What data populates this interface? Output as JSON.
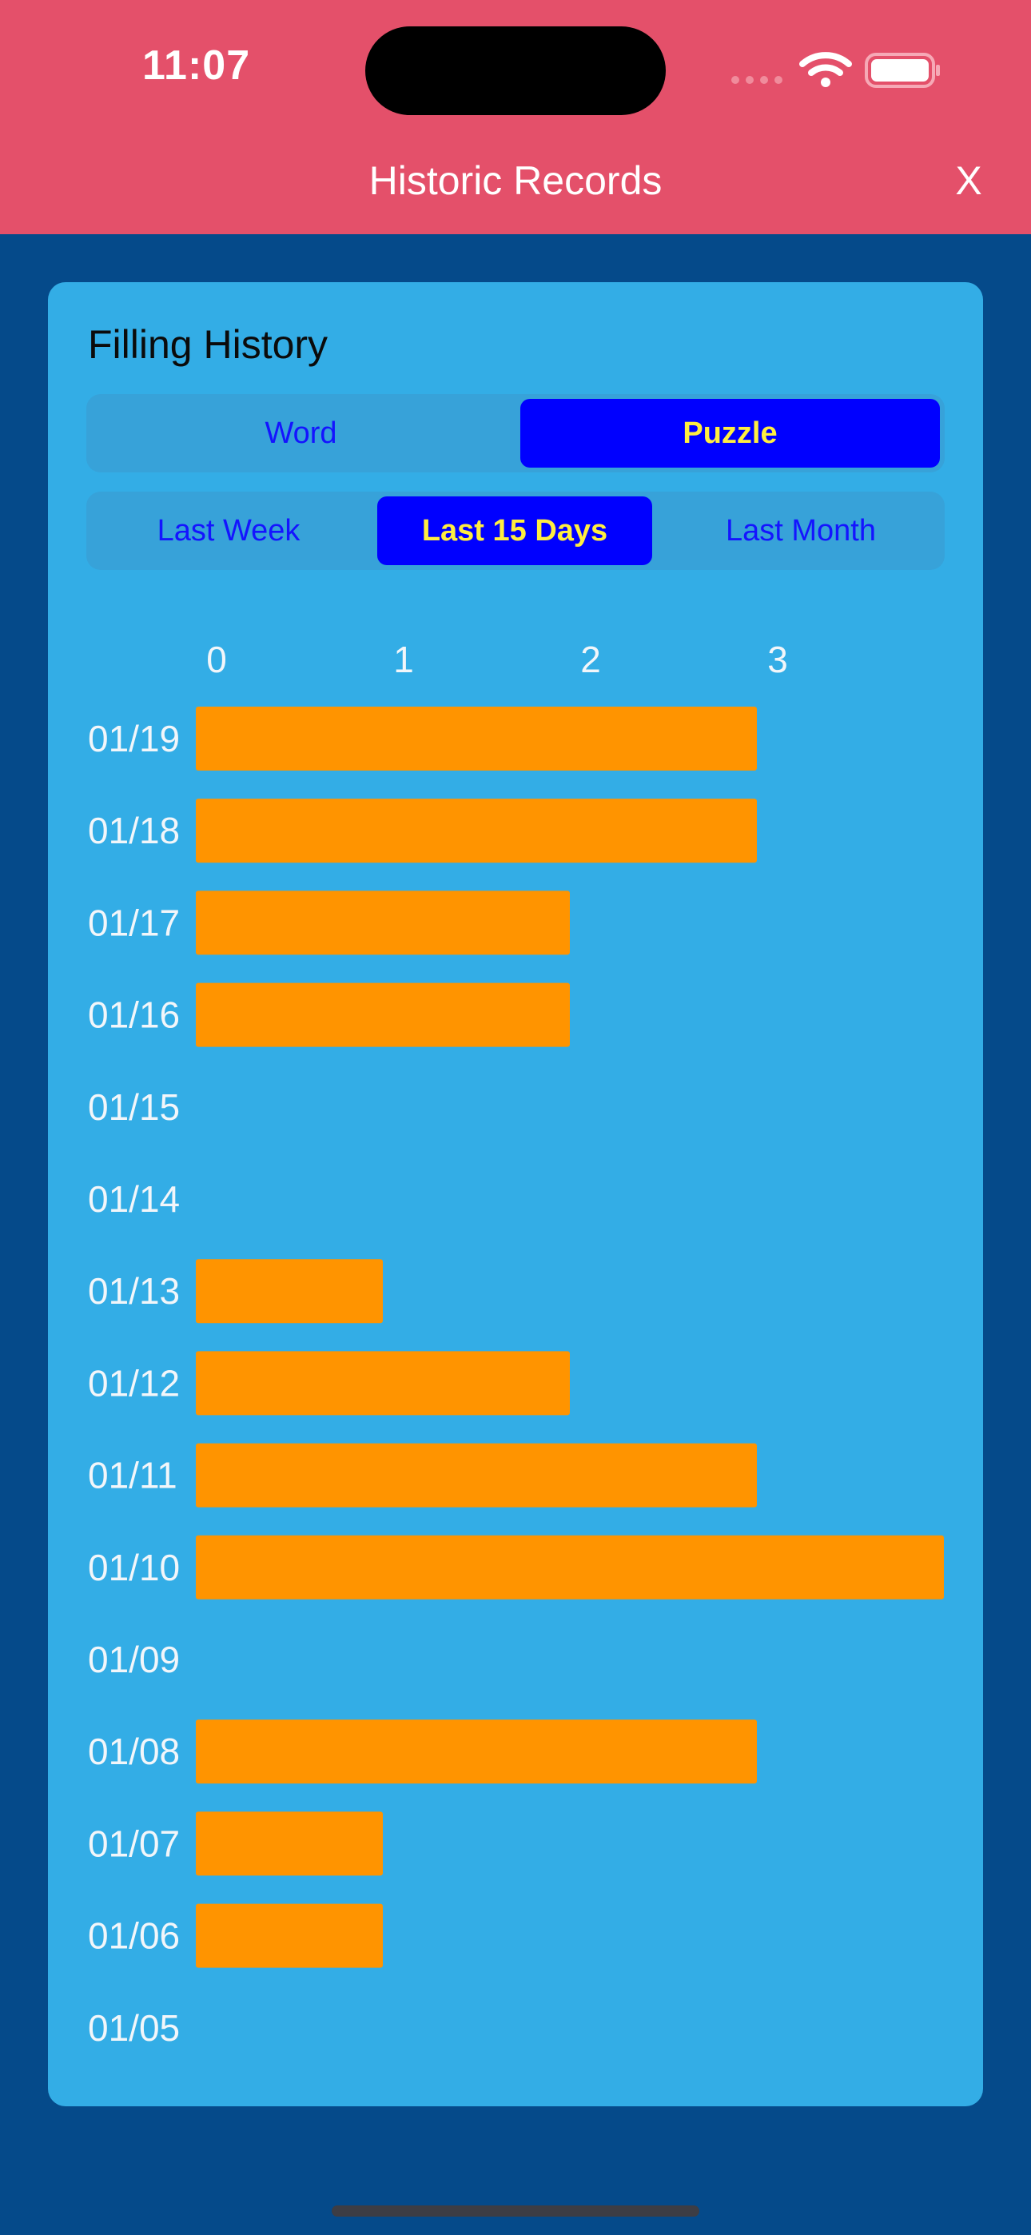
{
  "status_bar": {
    "time": "11:07"
  },
  "header": {
    "title": "Historic Records",
    "close_label": "X"
  },
  "card": {
    "title": "Filling History",
    "type_tabs": [
      {
        "label": "Word",
        "selected": false
      },
      {
        "label": "Puzzle",
        "selected": true
      }
    ],
    "range_tabs": [
      {
        "label": "Last Week",
        "selected": false
      },
      {
        "label": "Last 15 Days",
        "selected": true
      },
      {
        "label": "Last Month",
        "selected": false
      }
    ]
  },
  "colors": {
    "header": "#e4506a",
    "background": "#054a8a",
    "card": "#33ade6",
    "bar": "#ff9400",
    "selected_tab": "#0000ff",
    "selected_tab_text": "#ffee40",
    "tab_text": "#1414ff"
  },
  "chart_data": {
    "type": "bar",
    "orientation": "horizontal",
    "title": "",
    "xlabel": "",
    "ylabel": "",
    "x_ticks": [
      0,
      1,
      2,
      3
    ],
    "xlim": [
      0,
      4
    ],
    "grid": false,
    "categories": [
      "01/19",
      "01/18",
      "01/17",
      "01/16",
      "01/15",
      "01/14",
      "01/13",
      "01/12",
      "01/11",
      "01/10",
      "01/09",
      "01/08",
      "01/07",
      "01/06",
      "01/05"
    ],
    "values": [
      3,
      3,
      2,
      2,
      0,
      0,
      1,
      2,
      3,
      4,
      0,
      3,
      1,
      1,
      0
    ]
  }
}
